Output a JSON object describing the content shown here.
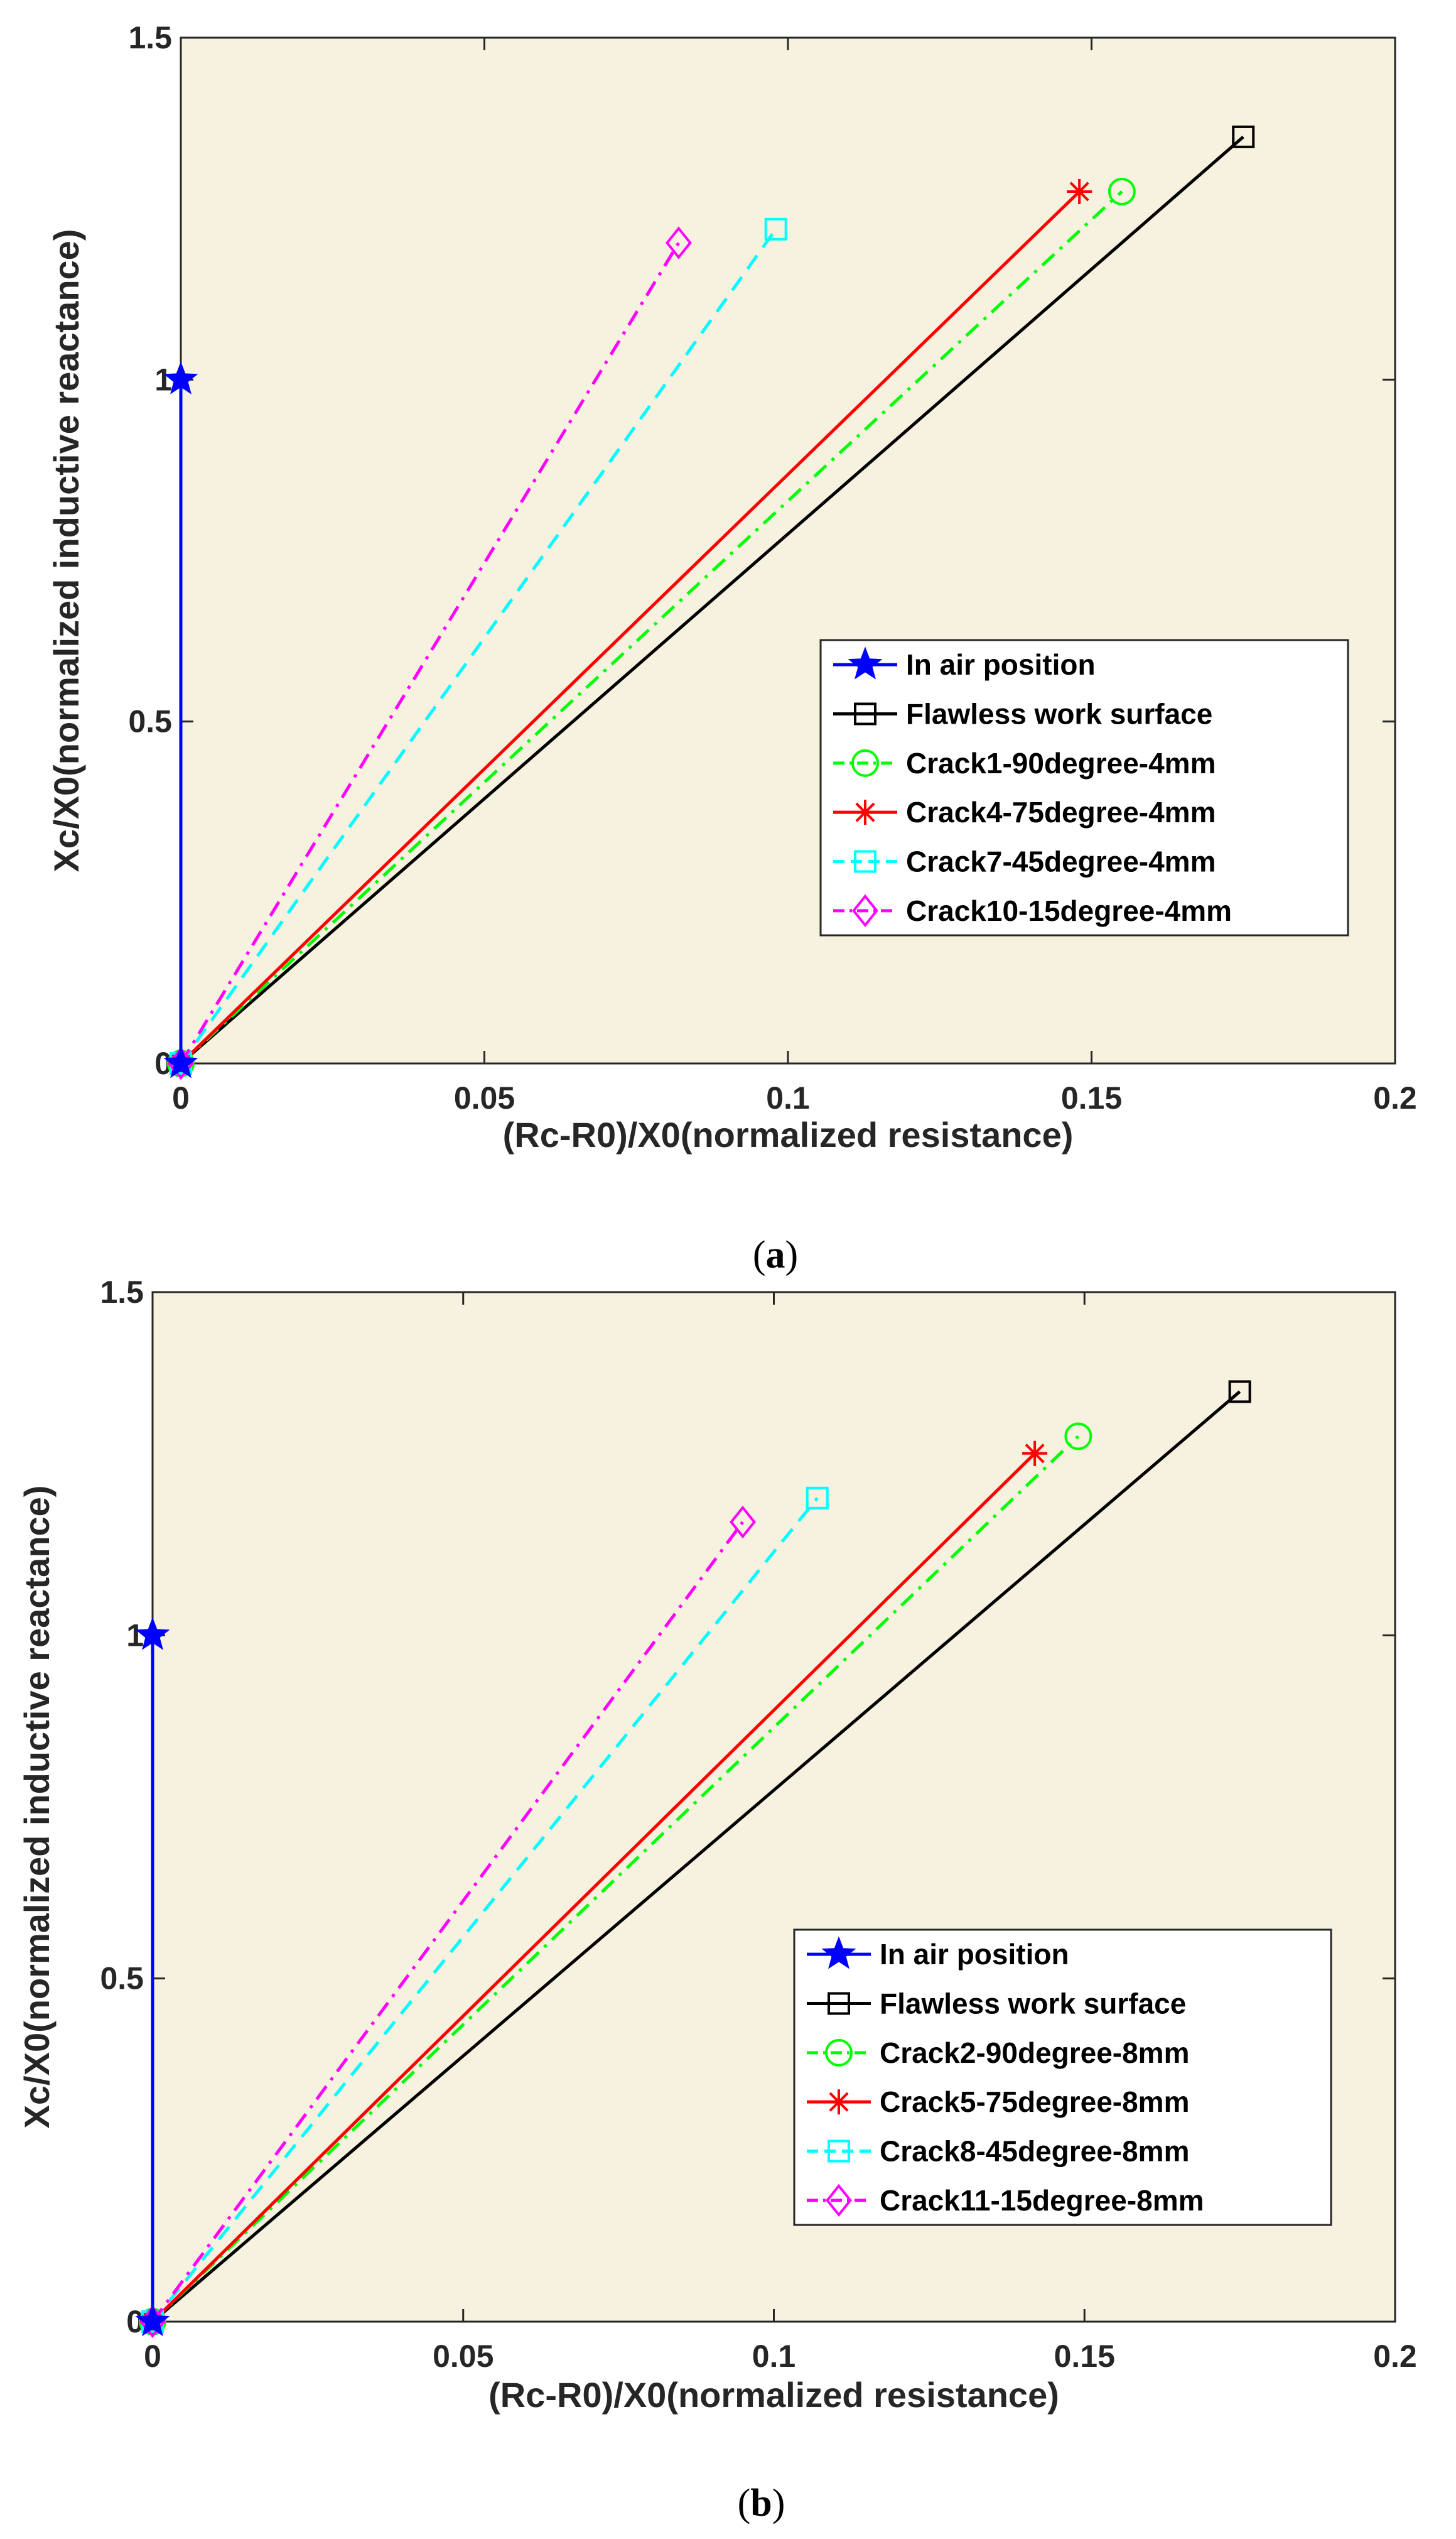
{
  "chart_data": [
    {
      "type": "line",
      "panel": "a",
      "caption": {
        "open": "(",
        "letter": "a",
        "close": ")"
      },
      "xlabel": "(Rc-R0)/X0(normalized resistance)",
      "ylabel": "Xc/X0(normalized inductive reactance)",
      "xlim": [
        0,
        0.2
      ],
      "ylim": [
        0,
        1.5
      ],
      "xticks": [
        "0",
        "0.05",
        "0.1",
        "0.15",
        "0.2"
      ],
      "yticks": [
        "0",
        "0.5",
        "1",
        "1.5"
      ],
      "background": "#f7f1df",
      "legend_position": "lower-right",
      "series": [
        {
          "name": "In air position",
          "color": "#0000ff",
          "style": "solid",
          "marker": "star5",
          "x": [
            0,
            0
          ],
          "y": [
            0,
            1
          ]
        },
        {
          "name": "Flawless work surface",
          "color": "#000000",
          "style": "solid",
          "marker": "square",
          "x": [
            0,
            0.175
          ],
          "y": [
            0,
            1.355
          ]
        },
        {
          "name": "Crack1-90degree-4mm",
          "color": "#00ff00",
          "style": "dashdot",
          "marker": "circle",
          "x": [
            0,
            0.155
          ],
          "y": [
            0,
            1.275
          ]
        },
        {
          "name": "Crack4-75degree-4mm",
          "color": "#ff0000",
          "style": "solid",
          "marker": "asterisk",
          "x": [
            0,
            0.148
          ],
          "y": [
            0,
            1.275
          ]
        },
        {
          "name": "Crack7-45degree-4mm",
          "color": "#00ffff",
          "style": "dashed",
          "marker": "square",
          "x": [
            0,
            0.098
          ],
          "y": [
            0,
            1.22
          ]
        },
        {
          "name": "Crack10-15degree-4mm",
          "color": "#ff00ff",
          "style": "dashdot",
          "marker": "diamond",
          "x": [
            0,
            0.082
          ],
          "y": [
            0,
            1.2
          ]
        }
      ]
    },
    {
      "type": "line",
      "panel": "b",
      "caption": {
        "open": "(",
        "letter": "b",
        "close": ")"
      },
      "xlabel": "(Rc-R0)/X0(normalized resistance)",
      "ylabel": "Xc/X0(normalized inductive reactance)",
      "xlim": [
        0,
        0.2
      ],
      "ylim": [
        0,
        1.5
      ],
      "xticks": [
        "0",
        "0.05",
        "0.1",
        "0.15",
        "0.2"
      ],
      "yticks": [
        "0",
        "0.5",
        "1",
        "1.5"
      ],
      "background": "#f7f1df",
      "legend_position": "lower-right",
      "series": [
        {
          "name": "In air position",
          "color": "#0000ff",
          "style": "solid",
          "marker": "star5",
          "x": [
            0,
            0
          ],
          "y": [
            0,
            1
          ]
        },
        {
          "name": "Flawless work surface",
          "color": "#000000",
          "style": "solid",
          "marker": "square",
          "x": [
            0,
            0.175
          ],
          "y": [
            0,
            1.355
          ]
        },
        {
          "name": "Crack2-90degree-8mm",
          "color": "#00ff00",
          "style": "dashdot",
          "marker": "circle",
          "x": [
            0,
            0.149
          ],
          "y": [
            0,
            1.29
          ]
        },
        {
          "name": "Crack5-75degree-8mm",
          "color": "#ff0000",
          "style": "solid",
          "marker": "asterisk",
          "x": [
            0,
            0.142
          ],
          "y": [
            0,
            1.265
          ]
        },
        {
          "name": "Crack8-45degree-8mm",
          "color": "#00ffff",
          "style": "dashed",
          "marker": "square",
          "x": [
            0,
            0.107
          ],
          "y": [
            0,
            1.2
          ]
        },
        {
          "name": "Crack11-15degree-8mm",
          "color": "#ff00ff",
          "style": "dashdot",
          "marker": "diamond",
          "x": [
            0,
            0.095
          ],
          "y": [
            0,
            1.165
          ]
        }
      ]
    }
  ]
}
